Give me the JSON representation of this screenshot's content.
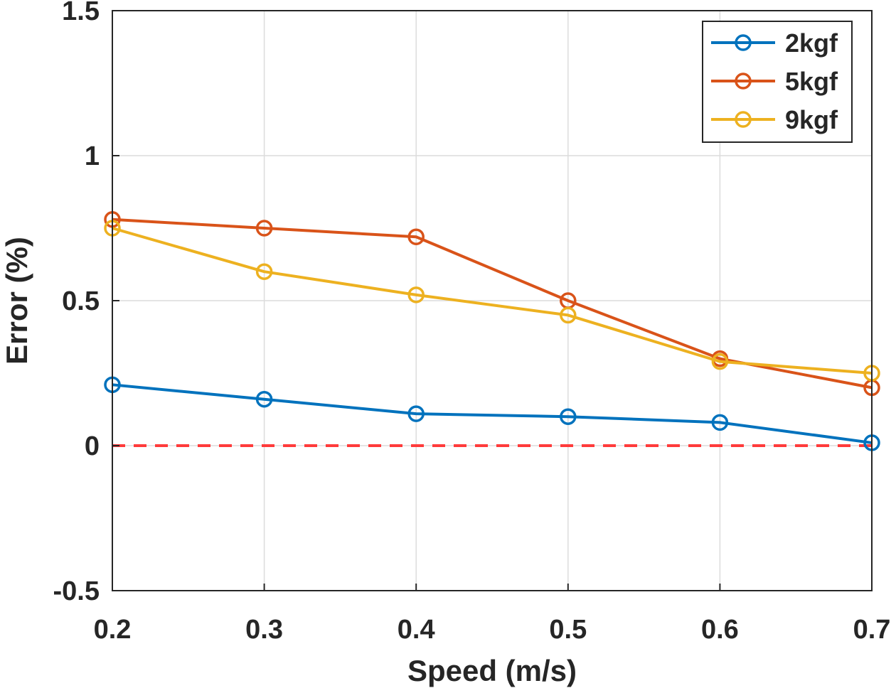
{
  "chart_data": {
    "type": "line",
    "title": "",
    "xlabel": "Speed (m/s)",
    "ylabel": "Error (%)",
    "xlim": [
      0.2,
      0.7
    ],
    "ylim": [
      -0.5,
      1.5
    ],
    "xticks": [
      "0.2",
      "0.3",
      "0.4",
      "0.5",
      "0.6",
      "0.7"
    ],
    "yticks": [
      "-0.5",
      "0",
      "0.5",
      "1",
      "1.5"
    ],
    "grid": true,
    "legend_position": "top-right",
    "x": [
      0.2,
      0.3,
      0.4,
      0.5,
      0.6,
      0.7
    ],
    "series": [
      {
        "name": "2kgf",
        "color": "#0072BD",
        "marker": "circle",
        "values": [
          0.21,
          0.16,
          0.11,
          0.1,
          0.08,
          0.01
        ]
      },
      {
        "name": "5kgf",
        "color": "#D95319",
        "marker": "circle",
        "values": [
          0.78,
          0.75,
          0.72,
          0.5,
          0.3,
          0.2
        ]
      },
      {
        "name": "9kgf",
        "color": "#EDB120",
        "marker": "circle",
        "values": [
          0.75,
          0.6,
          0.52,
          0.45,
          0.29,
          0.25
        ]
      }
    ],
    "reference_line": {
      "y": 0,
      "style": "dashed",
      "color": "#FF3B3B"
    }
  }
}
